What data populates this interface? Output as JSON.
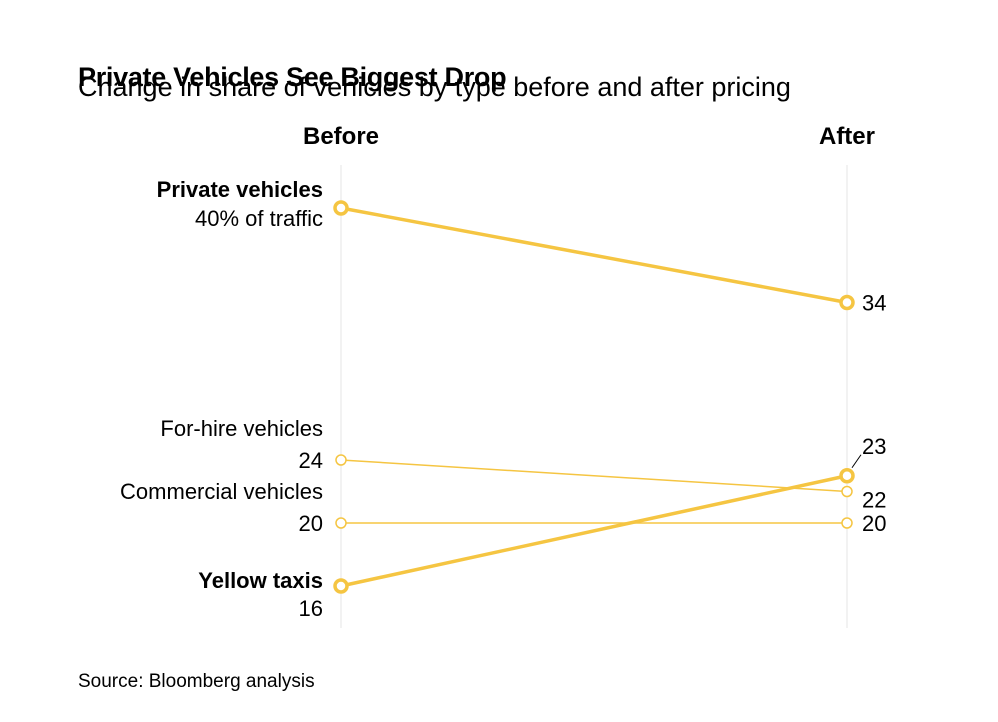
{
  "header": {
    "title": "Private Vehicles See Biggest Drop",
    "subtitle": "Change in share of vehicles by type before and after pricing"
  },
  "footer": {
    "source": "Source: Bloomberg analysis"
  },
  "chart_data": {
    "type": "line",
    "subtype": "slope",
    "title": "Private Vehicles See Biggest Drop",
    "subtitle": "Change in share of vehicles by type before and after pricing",
    "categories": [
      "Before",
      "After"
    ],
    "unit": "% of traffic",
    "grid": true,
    "series": [
      {
        "name": "Private vehicles",
        "values": [
          40,
          34
        ],
        "highlight": true,
        "before_label": "40% of traffic",
        "after_label": "34"
      },
      {
        "name": "For-hire vehicles",
        "values": [
          24,
          22
        ],
        "highlight": false,
        "before_label": "24",
        "after_label": "22"
      },
      {
        "name": "Commercial vehicles",
        "values": [
          20,
          20
        ],
        "highlight": false,
        "before_label": "20",
        "after_label": "20"
      },
      {
        "name": "Yellow taxis",
        "values": [
          16,
          23
        ],
        "highlight": true,
        "before_label": "16",
        "after_label": "23"
      }
    ],
    "colors": {
      "line": "#f5c542",
      "grid": "#e6e6e6",
      "text": "#000000",
      "leader": "#000000"
    }
  }
}
